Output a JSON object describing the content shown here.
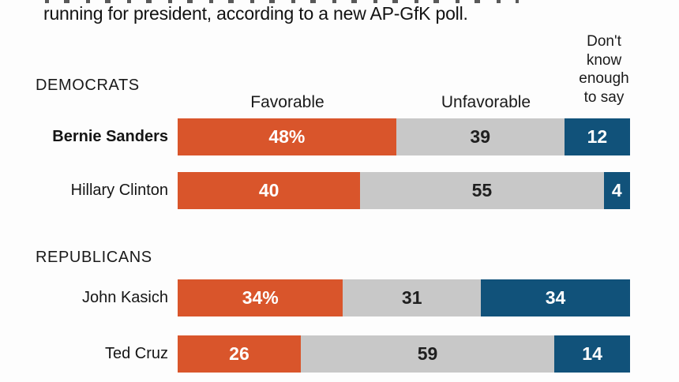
{
  "title_line": "running for president, according to a new AP-GfK poll.",
  "colors": {
    "favorable": "#d9552b",
    "unfavorable": "#c8c8c8",
    "dont_know": "#11527a",
    "value_light": "#ffffff",
    "value_dark": "#1f1f1f",
    "text": "#1a1a1a",
    "background": "#fdfdfd"
  },
  "column_headers": {
    "favorable": "Favorable",
    "unfavorable": "Unfavorable",
    "dont_know": "Don't\nknow\nenough\nto say"
  },
  "chart_data": {
    "type": "bar",
    "orientation": "horizontal",
    "stacked": true,
    "unit": "percent",
    "series": [
      "Favorable",
      "Unfavorable",
      "Don't know enough to say"
    ],
    "legend_position": "column-headers-above-first-row",
    "grid": false,
    "groups": [
      {
        "label": "DEMOCRATS",
        "rows": [
          {
            "name": "Bernie Sanders",
            "emphasis": true,
            "segments": [
              {
                "series": "Favorable",
                "value": 48,
                "label": "48%"
              },
              {
                "series": "Unfavorable",
                "value": 39,
                "label": "39"
              },
              {
                "series": "Don't know enough to say",
                "value": 12,
                "label": "12"
              }
            ]
          },
          {
            "name": "Hillary Clinton",
            "emphasis": false,
            "segments": [
              {
                "series": "Favorable",
                "value": 40,
                "label": "40"
              },
              {
                "series": "Unfavorable",
                "value": 55,
                "label": "55"
              },
              {
                "series": "Don't know enough to say",
                "value": 4,
                "label": "4"
              }
            ]
          }
        ]
      },
      {
        "label": "REPUBLICANS",
        "rows": [
          {
            "name": "John Kasich",
            "emphasis": false,
            "segments": [
              {
                "series": "Favorable",
                "value": 34,
                "label": "34%"
              },
              {
                "series": "Unfavorable",
                "value": 31,
                "label": "31"
              },
              {
                "series": "Don't know enough to say",
                "value": 34,
                "label": "34"
              }
            ]
          },
          {
            "name": "Ted Cruz",
            "emphasis": false,
            "segments": [
              {
                "series": "Favorable",
                "value": 26,
                "label": "26"
              },
              {
                "series": "Unfavorable",
                "value": 59,
                "label": "59"
              },
              {
                "series": "Don't know enough to say",
                "value": 14,
                "label": "14"
              }
            ]
          }
        ]
      }
    ]
  }
}
